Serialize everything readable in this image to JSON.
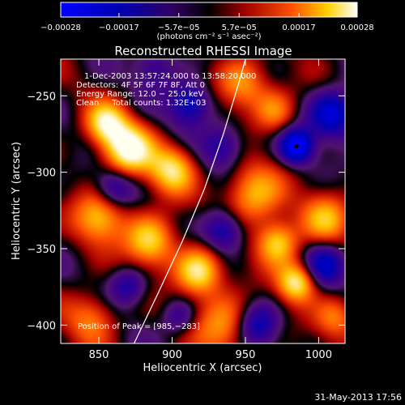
{
  "chart_data": {
    "type": "heatmap",
    "title": "Reconstructed RHESSI Image",
    "xlabel": "Heliocentric X (arcsec)",
    "ylabel": "Heliocentric Y (arcsec)",
    "xlim": [
      824,
      1018
    ],
    "ylim": [
      -412,
      -226
    ],
    "x_ticks": [
      {
        "value": 850,
        "label": "850"
      },
      {
        "value": 900,
        "label": "900"
      },
      {
        "value": 950,
        "label": "950"
      },
      {
        "value": 1000,
        "label": "1000"
      }
    ],
    "y_ticks": [
      {
        "value": -250,
        "label": "−250"
      },
      {
        "value": -300,
        "label": "−300"
      },
      {
        "value": -350,
        "label": "−350"
      },
      {
        "value": -400,
        "label": "−400"
      }
    ],
    "colorbar": {
      "label": "(photons cm⁻² s⁻¹ asec⁻²)",
      "range": [
        -0.00028,
        0.00028
      ],
      "colormap": "blue-white-red",
      "ticks": [
        {
          "value": -0.00028,
          "label": "−0.00028"
        },
        {
          "value": -0.00017,
          "label": "−0.00017"
        },
        {
          "value": -5.7e-05,
          "label": "−5.7e−05"
        },
        {
          "value": 5.7e-05,
          "label": "5.7e−05"
        },
        {
          "value": 0.00017,
          "label": "0.00017"
        },
        {
          "value": 0.00028,
          "label": "0.00028"
        }
      ]
    },
    "annotations": [
      "1-Dec-2003 13:57:24.000 to 13:58:20.000",
      "Detectors: 4F 5F 6F 7F 8F, Att 0",
      "Energy Range: 12.0 − 25.0 keV",
      "Clean     Total counts: 1.32E+03"
    ],
    "peak_position": {
      "x": 985,
      "y": -283
    },
    "peak_label": "Position of Peak = [985,−283]",
    "limb": [
      {
        "x": 874,
        "y": -412
      },
      {
        "x": 890,
        "y": -380
      },
      {
        "x": 907,
        "y": -345
      },
      {
        "x": 922,
        "y": -311
      },
      {
        "x": 935,
        "y": -275
      },
      {
        "x": 946,
        "y": -240
      },
      {
        "x": 950,
        "y": -226
      }
    ],
    "sources": [
      {
        "x": 855,
        "y": -268,
        "amp": 0.8,
        "sigma": 10
      },
      {
        "x": 870,
        "y": -285,
        "amp": 1.0,
        "sigma": 12
      },
      {
        "x": 900,
        "y": -298,
        "amp": 0.8,
        "sigma": 11
      },
      {
        "x": 850,
        "y": -330,
        "amp": 0.7,
        "sigma": 12
      },
      {
        "x": 885,
        "y": -345,
        "amp": 0.8,
        "sigma": 12
      },
      {
        "x": 918,
        "y": -365,
        "amp": 0.9,
        "sigma": 11
      },
      {
        "x": 948,
        "y": -242,
        "amp": 0.6,
        "sigma": 12
      },
      {
        "x": 955,
        "y": -315,
        "amp": 0.7,
        "sigma": 14
      },
      {
        "x": 972,
        "y": -346,
        "amp": 0.8,
        "sigma": 10
      },
      {
        "x": 985,
        "y": -372,
        "amp": 0.9,
        "sigma": 9
      },
      {
        "x": 1005,
        "y": -330,
        "amp": 0.6,
        "sigma": 12
      },
      {
        "x": 1012,
        "y": -395,
        "amp": 0.5,
        "sigma": 10
      },
      {
        "x": 935,
        "y": -400,
        "amp": 0.6,
        "sigma": 14
      },
      {
        "x": 845,
        "y": -395,
        "amp": 0.5,
        "sigma": 12
      },
      {
        "x": 970,
        "y": -260,
        "amp": 0.5,
        "sigma": 10
      },
      {
        "x": 985,
        "y": -283,
        "amp": -1.0,
        "sigma": 8
      },
      {
        "x": 1010,
        "y": -262,
        "amp": -0.8,
        "sigma": 11
      },
      {
        "x": 912,
        "y": -255,
        "amp": -0.7,
        "sigma": 10
      },
      {
        "x": 860,
        "y": -310,
        "amp": -0.5,
        "sigma": 9
      },
      {
        "x": 935,
        "y": -338,
        "amp": -0.7,
        "sigma": 10
      },
      {
        "x": 958,
        "y": -400,
        "amp": -0.6,
        "sigma": 10
      },
      {
        "x": 1005,
        "y": -360,
        "amp": -0.6,
        "sigma": 10
      },
      {
        "x": 870,
        "y": -375,
        "amp": -0.5,
        "sigma": 9
      },
      {
        "x": 935,
        "y": -283,
        "amp": -0.5,
        "sigma": 10
      },
      {
        "x": 888,
        "y": -232,
        "amp": -0.4,
        "sigma": 10
      },
      {
        "x": 905,
        "y": -395,
        "amp": -0.4,
        "sigma": 8
      }
    ]
  },
  "timestamp": "31-May-2013 17:56"
}
